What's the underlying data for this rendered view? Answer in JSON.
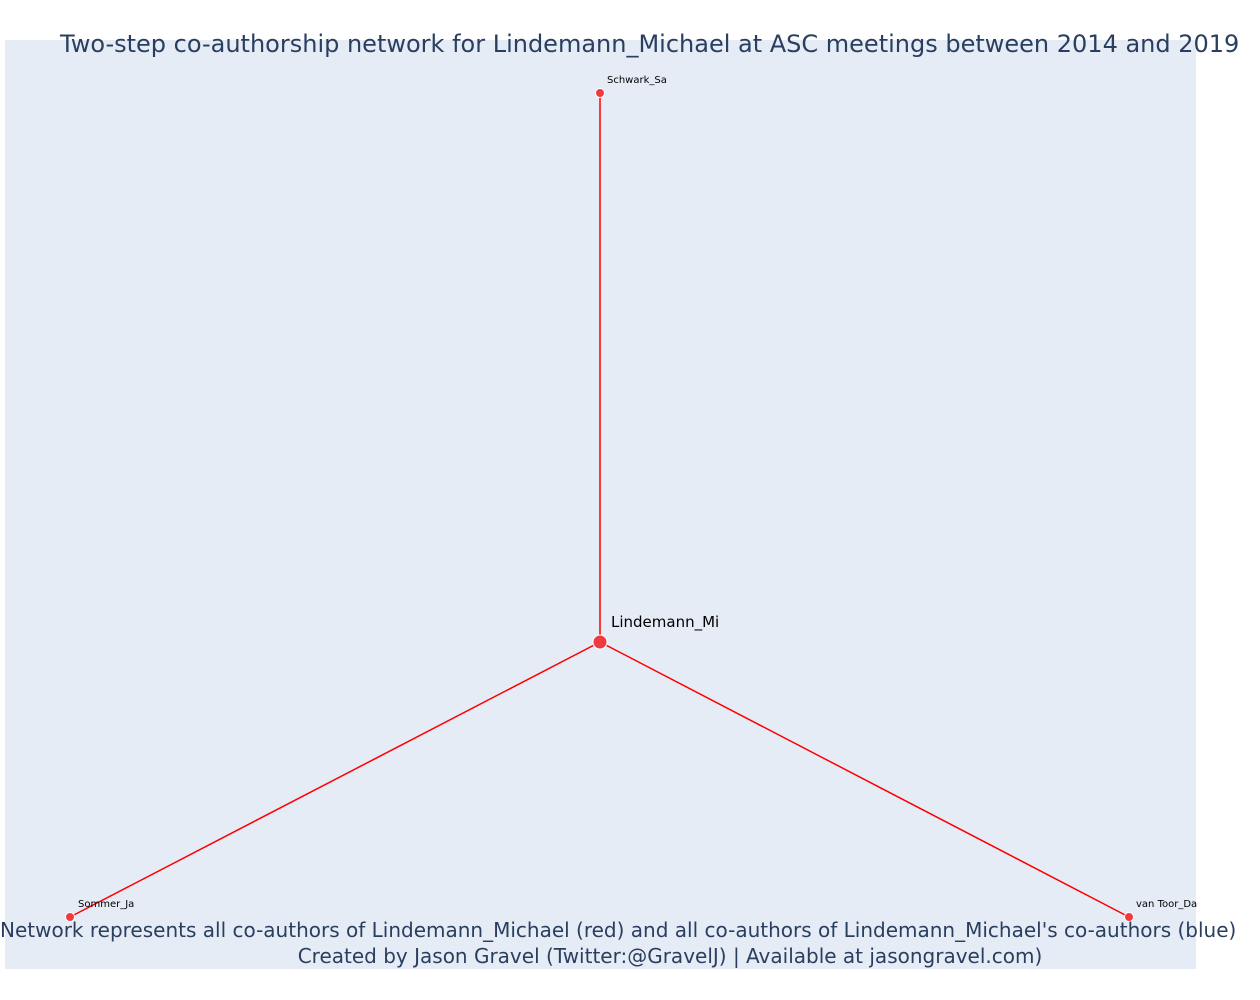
{
  "title": "Two-step co-authorship network for Lindemann_Michael at ASC meetings between 2014 and 2019",
  "caption": {
    "line1": "Network represents all co-authors of Lindemann_Michael (red) and all co-authors of Lindemann_Michael's co-authors (blue)",
    "line2": "Created by Jason Gravel (Twitter:@GravelJ) | Available at jasongravel.com)"
  },
  "colors": {
    "background": "#e5ecf6",
    "edge": "#ff0000",
    "node_fill": "#ef3b40",
    "node_stroke": "#ffffff",
    "title": "#2a3f5f"
  },
  "network": {
    "center": {
      "id": "center",
      "label": "Lindemann_Mi"
    },
    "coauthors": [
      {
        "id": "schwark",
        "label": "Schwark_Sa"
      },
      {
        "id": "sommer",
        "label": "Sommer_Ja"
      },
      {
        "id": "vantoor",
        "label": "van Toor_Da"
      }
    ],
    "edges": [
      {
        "source": "center",
        "target": "schwark"
      },
      {
        "source": "center",
        "target": "sommer"
      },
      {
        "source": "center",
        "target": "vantoor"
      }
    ]
  }
}
